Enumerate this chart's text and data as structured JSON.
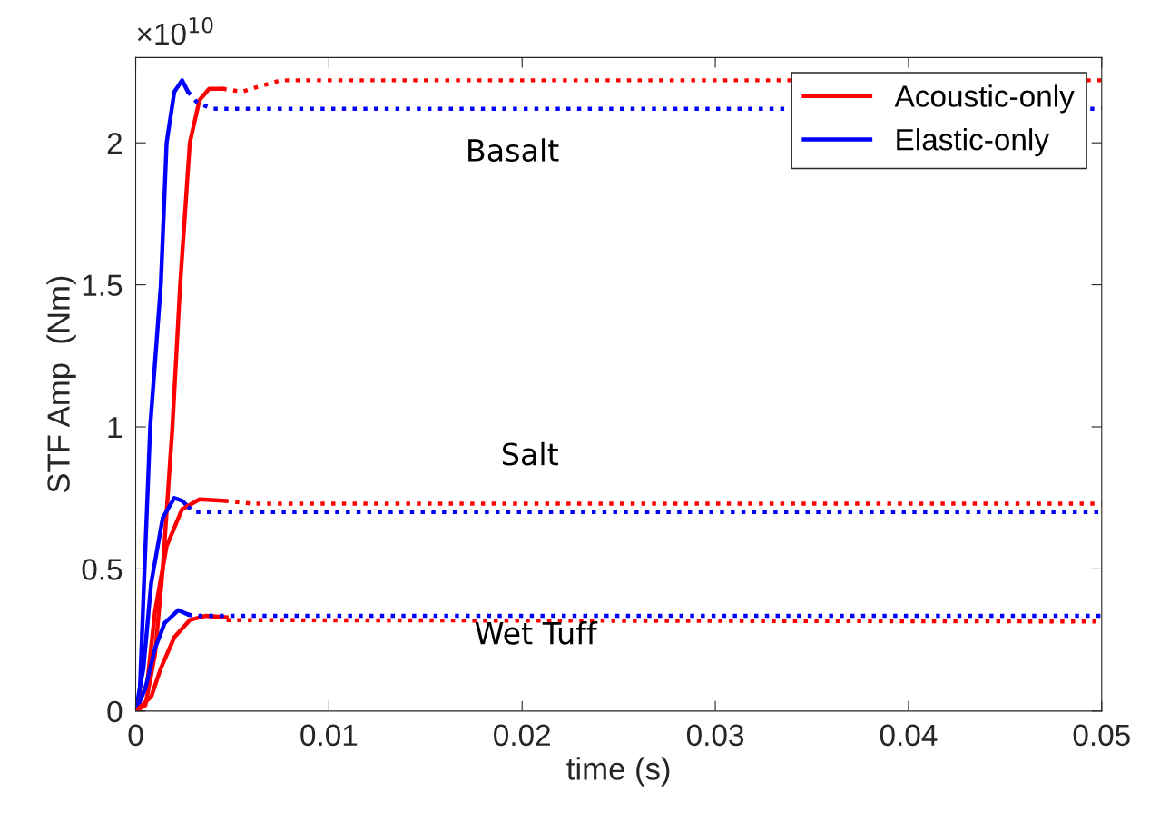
{
  "chart_data": {
    "type": "line",
    "xlabel": "time (s)",
    "ylabel": "STF Amp  (Nm)",
    "xlim": [
      0,
      0.05
    ],
    "ylim": [
      0,
      2.3
    ],
    "xticks": [
      0,
      0.01,
      0.02,
      0.03,
      0.04,
      0.05
    ],
    "yticks": [
      0,
      0.5,
      1,
      1.5,
      2
    ],
    "grid": false,
    "legend": "top right",
    "marker": "none",
    "annotations": [
      "×10$^{10}$",
      "Basalt",
      "Salt",
      "Wet Tuff"
    ],
    "series": [
      {
        "name": "Acoustic-only",
        "color": "#ff0000",
        "line_style": "solid",
        "x": [
          0,
          0.0005,
          0.001,
          0.0014,
          0.0019,
          0.0023,
          0.0028,
          0.0033,
          0.0038,
          0.0045
        ],
        "values": [
          0,
          0.02,
          0.2,
          0.5,
          1.0,
          1.5,
          2.0,
          2.15,
          2.19,
          2.19
        ]
      },
      {
        "name": "Elastic-only",
        "color": "#0000ff",
        "line_style": "solid",
        "x": [
          0,
          0.0002,
          0.0004,
          0.00075,
          0.0013,
          0.0016,
          0.002,
          0.0024,
          0.0027
        ],
        "values": [
          0,
          0.05,
          0.4,
          1.0,
          1.5,
          2.0,
          2.18,
          2.22,
          2.18
        ]
      },
      {
        "color": "#ff0000",
        "line_style": "dotted",
        "x": [
          0.0045,
          0.0055,
          0.0065,
          0.0075,
          0.05
        ],
        "values": [
          2.19,
          2.18,
          2.2,
          2.22,
          2.22
        ]
      },
      {
        "color": "#0000ff",
        "line_style": "dotted",
        "x": [
          0.0027,
          0.0032,
          0.004,
          0.05
        ],
        "values": [
          2.18,
          2.14,
          2.12,
          2.12
        ]
      },
      {
        "color": "#0000ff",
        "line_style": "solid",
        "x": [
          0,
          0.0004,
          0.0008,
          0.0014,
          0.002,
          0.0024,
          0.0027
        ],
        "values": [
          0,
          0.15,
          0.45,
          0.68,
          0.75,
          0.74,
          0.72
        ]
      },
      {
        "color": "#ff0000",
        "line_style": "solid",
        "x": [
          0,
          0.0006,
          0.001,
          0.0016,
          0.0024,
          0.0033,
          0.0046
        ],
        "values": [
          0,
          0.1,
          0.35,
          0.58,
          0.71,
          0.745,
          0.74
        ]
      },
      {
        "color": "#0000ff",
        "line_style": "dotted",
        "x": [
          0.0027,
          0.003,
          0.05
        ],
        "values": [
          0.72,
          0.7,
          0.7
        ]
      },
      {
        "color": "#ff0000",
        "line_style": "dotted",
        "x": [
          0.0046,
          0.006,
          0.05
        ],
        "values": [
          0.74,
          0.73,
          0.73
        ]
      },
      {
        "color": "#0000ff",
        "line_style": "solid",
        "x": [
          0,
          0.0005,
          0.001,
          0.0015,
          0.0022,
          0.0027
        ],
        "values": [
          0,
          0.08,
          0.22,
          0.31,
          0.355,
          0.34
        ]
      },
      {
        "color": "#ff0000",
        "line_style": "solid",
        "x": [
          0,
          0.0008,
          0.0013,
          0.002,
          0.0028,
          0.0036,
          0.0047
        ],
        "values": [
          0,
          0.05,
          0.15,
          0.26,
          0.32,
          0.335,
          0.33
        ]
      },
      {
        "color": "#0000ff",
        "line_style": "dotted",
        "x": [
          0.0027,
          0.003,
          0.05
        ],
        "values": [
          0.34,
          0.335,
          0.335
        ]
      },
      {
        "color": "#ff0000",
        "line_style": "dotted",
        "x": [
          0.0047,
          0.05
        ],
        "values": [
          0.32,
          0.315
        ]
      }
    ]
  }
}
